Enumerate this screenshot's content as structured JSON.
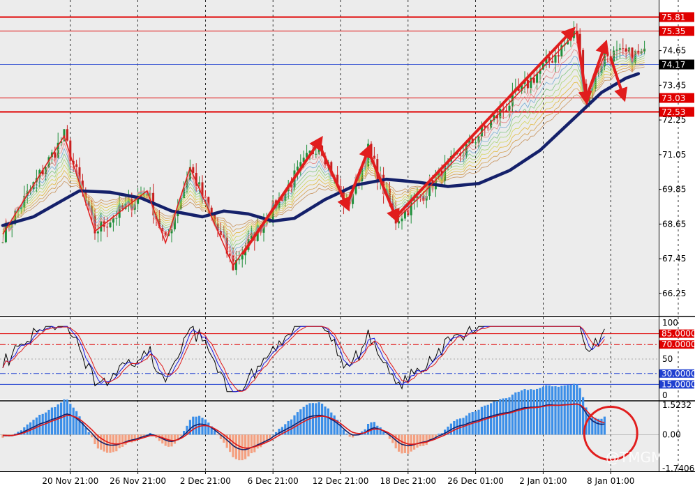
{
  "watermark": "@TMGM",
  "colors": {
    "background": "#ffffff",
    "plot_bg": "#ececec",
    "bull": "#1e8f3a",
    "bear": "#c81e1e",
    "trend": "#e11d1d",
    "ema": "#14206a",
    "level": "#e00000",
    "current": "#2040d0",
    "rsi_black": "#000000",
    "rsi_blue": "#1818e0",
    "rsi_red": "#e01818",
    "macd_pos": "#3a8ee8",
    "macd_neg": "#f4a080"
  },
  "chart_data": [
    {
      "type": "candlestick",
      "panel": "price",
      "ylim": [
        65.5,
        76.4
      ],
      "y_ticks": [
        "66.25",
        "67.45",
        "68.65",
        "69.85",
        "71.05",
        "72.25",
        "73.45",
        "74.65"
      ],
      "x_tick_labels": [
        "20 Nov 21:00",
        "26 Nov 21:00",
        "2 Dec 21:00",
        "6 Dec 21:00",
        "12 Dec 21:00",
        "18 Dec 21:00",
        "26 Dec 01:00",
        "2 Jan 01:00",
        "8 Jan 01:00"
      ],
      "x_tick_index": [
        22,
        44,
        66,
        88,
        110,
        132,
        154,
        176,
        198
      ],
      "levels": [
        {
          "label": "75.81",
          "value": 75.81,
          "color": "#e00000",
          "width": 2
        },
        {
          "label": "75.35",
          "value": 75.35,
          "color": "#e00000",
          "width": 1
        },
        {
          "label": "73.03",
          "value": 73.03,
          "color": "#e00000",
          "width": 1
        },
        {
          "label": "72.53",
          "value": 72.53,
          "color": "#e00000",
          "width": 2
        }
      ],
      "current_price": {
        "label": "74.17",
        "value": 74.17
      },
      "ema_line": [
        [
          0,
          68.6
        ],
        [
          10,
          68.9
        ],
        [
          20,
          69.5
        ],
        [
          25,
          69.8
        ],
        [
          35,
          69.75
        ],
        [
          45,
          69.55
        ],
        [
          55,
          69.1
        ],
        [
          65,
          68.9
        ],
        [
          72,
          69.1
        ],
        [
          80,
          69.0
        ],
        [
          88,
          68.75
        ],
        [
          95,
          68.85
        ],
        [
          105,
          69.5
        ],
        [
          115,
          70.0
        ],
        [
          125,
          70.2
        ],
        [
          135,
          70.1
        ],
        [
          145,
          69.95
        ],
        [
          155,
          70.05
        ],
        [
          165,
          70.5
        ],
        [
          175,
          71.2
        ],
        [
          185,
          72.2
        ],
        [
          195,
          73.2
        ],
        [
          203,
          73.7
        ],
        [
          207,
          73.85
        ]
      ],
      "zigzag": [
        [
          0,
          68.3
        ],
        [
          20,
          71.7
        ],
        [
          30,
          68.4
        ],
        [
          47,
          69.8
        ],
        [
          53,
          68.0
        ],
        [
          61,
          70.6
        ],
        [
          75,
          67.2
        ],
        [
          103,
          71.5
        ],
        [
          112,
          69.2
        ],
        [
          119,
          71.2
        ],
        [
          128,
          68.8
        ],
        [
          135,
          69.5
        ],
        [
          187,
          75.3
        ],
        [
          190,
          73.0
        ],
        [
          196,
          74.5
        ]
      ],
      "trend_arrows": [
        [
          [
            78,
            67.6
          ],
          [
            103,
            71.5
          ]
        ],
        [
          [
            103,
            71.4
          ],
          [
            112,
            69.3
          ]
        ],
        [
          [
            112,
            69.3
          ],
          [
            119,
            71.2
          ]
        ],
        [
          [
            119,
            71.2
          ],
          [
            128,
            68.9
          ]
        ],
        [
          [
            128,
            68.9
          ],
          [
            185,
            75.3
          ]
        ],
        [
          [
            187,
            75.3
          ],
          [
            190,
            73.0
          ]
        ],
        [
          [
            190,
            73.0
          ],
          [
            196,
            74.8
          ]
        ],
        [
          [
            198,
            74.4
          ],
          [
            202,
            73.1
          ]
        ]
      ]
    },
    {
      "type": "line",
      "panel": "rsi",
      "ylim": [
        0,
        100
      ],
      "y_ticks": [
        "100",
        "50",
        "0"
      ],
      "levels": [
        {
          "label": "85.0000",
          "value": 85,
          "color": "#e00000",
          "style": "solid"
        },
        {
          "label": "70.0000",
          "value": 70,
          "color": "#e00000",
          "style": "dashdot"
        },
        {
          "label": "30.0000",
          "value": 30,
          "color": "#2040d0",
          "style": "dashdot"
        },
        {
          "label": "15.0000",
          "value": 15,
          "color": "#2040d0",
          "style": "solid"
        }
      ]
    },
    {
      "type": "bar",
      "panel": "macd",
      "ylim": [
        -1.7406,
        1.5232
      ],
      "y_ticks": [
        "1.5232",
        "0.00",
        "-1.7406"
      ]
    }
  ]
}
